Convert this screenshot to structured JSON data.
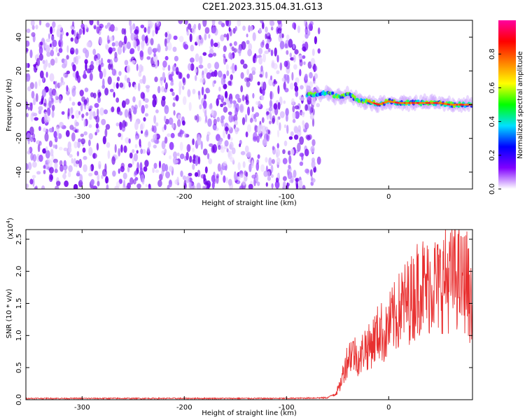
{
  "title": "C2E1.2023.315.04.31.G13",
  "chart_data": [
    {
      "type": "heatmap",
      "xlabel": "Height of straight line (km)",
      "ylabel": "Frequency (Hz)",
      "xlim": [
        -355,
        82
      ],
      "ylim": [
        -50,
        50
      ],
      "xticks": [
        -300,
        -200,
        -100,
        0
      ],
      "yticks": [
        -40,
        -20,
        0,
        20,
        40
      ],
      "noise_region_x": [
        -355,
        -68
      ],
      "signal_track": {
        "x": [
          -80,
          -70,
          -60,
          -50,
          -40,
          -30,
          -20,
          -10,
          0,
          10,
          20,
          30,
          40,
          50,
          60,
          70,
          82
        ],
        "freq_hz": [
          6,
          6,
          7,
          5,
          6,
          3,
          2,
          0,
          2,
          1,
          1,
          1,
          1,
          1,
          0,
          0,
          0
        ]
      },
      "colorbar": {
        "label": "Normalized spectral amplitude",
        "range": [
          0.0,
          1.0
        ],
        "ticks": [
          "0.0",
          "0.2",
          "0.4",
          "0.6",
          "0.8"
        ],
        "colors": [
          "#ffffff",
          "#8000ff",
          "#0000ff",
          "#00e0ff",
          "#00ff00",
          "#ffff00",
          "#ff8000",
          "#ff0000",
          "#ff00a0"
        ]
      }
    },
    {
      "type": "line",
      "xlabel": "Height of straight line (km)",
      "ylabel": "SNR (10 * v/v)",
      "yscale_label": "(x10",
      "yscale_exp": "4",
      "yscale_close": ")",
      "xlim": [
        -355,
        82
      ],
      "ylim": [
        0,
        2.65
      ],
      "xticks": [
        -300,
        -200,
        -100,
        0
      ],
      "yticks": [
        "0.0",
        "0.5",
        "1.0",
        "1.5",
        "2.0",
        "2.5"
      ],
      "color": "#e83030",
      "series": [
        {
          "x": [
            -355,
            -100,
            -60,
            -52,
            -48,
            -44,
            -40,
            -36,
            -32,
            -28,
            -24,
            -20,
            -16,
            -12,
            -8,
            -4,
            0,
            4,
            8,
            12,
            16,
            20,
            24,
            28,
            32,
            36,
            40,
            44,
            48,
            52,
            56,
            60,
            64,
            68,
            72,
            76,
            80,
            82
          ],
          "y": [
            0.02,
            0.02,
            0.03,
            0.1,
            0.2,
            0.45,
            0.65,
            0.75,
            0.7,
            0.6,
            0.85,
            0.8,
            0.9,
            1.0,
            1.1,
            0.95,
            1.15,
            1.25,
            1.3,
            1.45,
            1.5,
            1.55,
            1.6,
            1.75,
            1.85,
            1.7,
            1.8,
            1.85,
            1.75,
            1.85,
            1.9,
            1.85,
            1.95,
            1.9,
            1.8,
            1.9,
            1.5,
            1.3
          ]
        }
      ]
    }
  ]
}
